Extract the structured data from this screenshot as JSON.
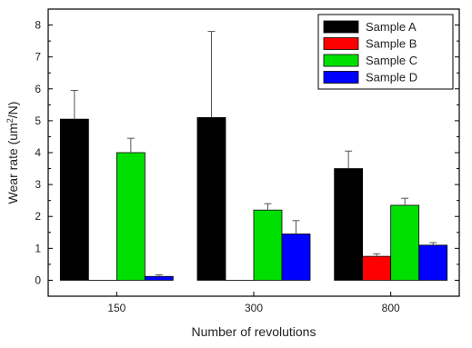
{
  "chart_data": {
    "type": "bar",
    "title": "",
    "xlabel": "Number of revolutions",
    "ylabel": "Wear rate (um",
    "ylabel_sup": "2",
    "ylabel_suffix": "/N)",
    "categories": [
      "150",
      "300",
      "800"
    ],
    "ylim": [
      -0.5,
      8.5
    ],
    "yticks": [
      0,
      1,
      2,
      3,
      4,
      5,
      6,
      7,
      8
    ],
    "grid": false,
    "legend_position": "top-right",
    "series": [
      {
        "name": "Sample A",
        "color": "#000000",
        "values": [
          5.05,
          5.1,
          3.5
        ],
        "errors": [
          0.9,
          2.7,
          0.55
        ]
      },
      {
        "name": "Sample B",
        "color": "#ff0000",
        "values": [
          0.0,
          0.0,
          0.75
        ],
        "errors": [
          0.0,
          0.0,
          0.08
        ]
      },
      {
        "name": "Sample C",
        "color": "#00e000",
        "values": [
          4.0,
          2.2,
          2.35
        ],
        "errors": [
          0.45,
          0.2,
          0.22
        ]
      },
      {
        "name": "Sample D",
        "color": "#0000ff",
        "values": [
          0.12,
          1.45,
          1.1
        ],
        "errors": [
          0.05,
          0.42,
          0.08
        ]
      }
    ]
  }
}
